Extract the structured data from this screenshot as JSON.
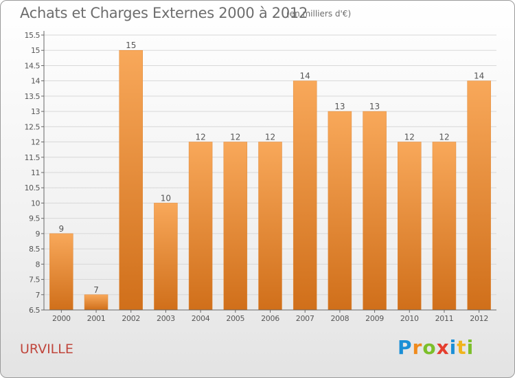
{
  "header": {
    "title": "Achats et Charges Externes 2000 à 2012",
    "subtitle": "(en milliers d'€)"
  },
  "footer": {
    "commune": "URVILLE",
    "brand": [
      "P",
      "r",
      "o",
      "x",
      "i",
      "t",
      "i"
    ]
  },
  "colors": {
    "bar_top": "#f8a85a",
    "bar_bottom": "#d06f1a",
    "axis": "#666666",
    "grid": "#d8d8d8",
    "commune": "#c0463c"
  },
  "chart_data": {
    "type": "bar",
    "categories": [
      "2000",
      "2001",
      "2002",
      "2003",
      "2004",
      "2005",
      "2006",
      "2007",
      "2008",
      "2009",
      "2010",
      "2011",
      "2012"
    ],
    "values": [
      9,
      7,
      15,
      10,
      12,
      12,
      12,
      14,
      13,
      13,
      12,
      12,
      14
    ],
    "data_labels": [
      "9",
      "7",
      "15",
      "10",
      "12",
      "12",
      "12",
      "14",
      "13",
      "13",
      "12",
      "12",
      "14"
    ],
    "yticks": [
      6.5,
      7,
      7.5,
      8,
      8.5,
      9,
      9.5,
      10,
      10.5,
      11,
      11.5,
      12,
      12.5,
      13,
      13.5,
      14,
      14.5,
      15,
      15.5
    ],
    "ytick_labels": [
      "6.5",
      "7",
      "7.5",
      "8",
      "8.5",
      "9",
      "9.5",
      "10",
      "10.5",
      "11",
      "11.5",
      "12",
      "12.5",
      "13",
      "13.5",
      "14",
      "14.5",
      "15",
      "15.5"
    ],
    "ylim": [
      6.5,
      15.5
    ],
    "title": "Achats et Charges Externes 2000 à 2012",
    "xlabel": "",
    "ylabel": "",
    "grid": true,
    "legend": false
  }
}
